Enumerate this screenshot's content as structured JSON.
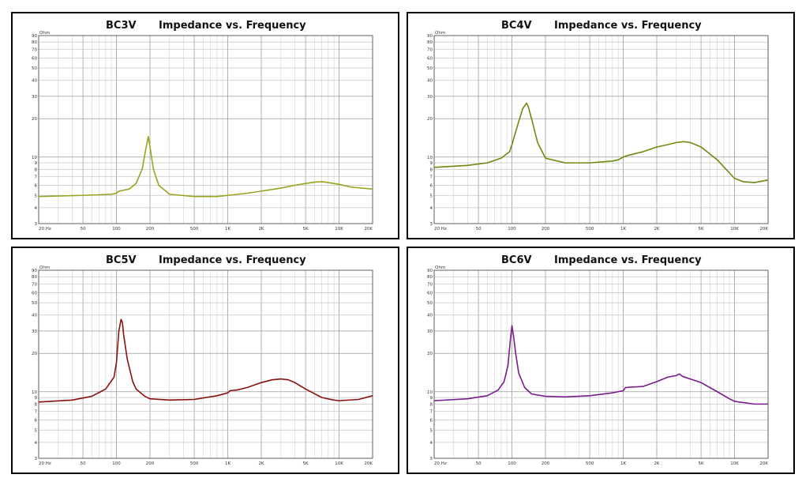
{
  "chart_data": [
    {
      "type": "line",
      "model": "BC3V",
      "title": "Impedance vs. Frequency",
      "xscale": "log",
      "yscale": "log",
      "xlim": [
        20,
        20000
      ],
      "ylim": [
        3,
        90
      ],
      "yunit": "Ohm",
      "xticks": [
        {
          "v": 20,
          "l": "20 Hz"
        },
        {
          "v": 50,
          "l": "50"
        },
        {
          "v": 100,
          "l": "100"
        },
        {
          "v": 200,
          "l": "200"
        },
        {
          "v": 500,
          "l": "500"
        },
        {
          "v": 1000,
          "l": "1K"
        },
        {
          "v": 2000,
          "l": "2K"
        },
        {
          "v": 5000,
          "l": "5K"
        },
        {
          "v": 10000,
          "l": "10K"
        },
        {
          "v": 20000,
          "l": "20K"
        }
      ],
      "yticks": [
        {
          "v": 90,
          "l": "90"
        },
        {
          "v": 80,
          "l": "80"
        },
        {
          "v": 70,
          "l": "70"
        },
        {
          "v": 60,
          "l": "60"
        },
        {
          "v": 50,
          "l": "50"
        },
        {
          "v": 40,
          "l": "40"
        },
        {
          "v": 30,
          "l": "30"
        },
        {
          "v": 20,
          "l": "20"
        },
        {
          "v": 10,
          "l": "10"
        },
        {
          "v": 9,
          "l": "9"
        },
        {
          "v": 8,
          "l": "8"
        },
        {
          "v": 7,
          "l": "7"
        },
        {
          "v": 6,
          "l": "6"
        },
        {
          "v": 5,
          "l": "5"
        },
        {
          "v": 4,
          "l": "4"
        },
        {
          "v": 3,
          "l": "3"
        }
      ],
      "color": "#9aa31c",
      "series": [
        {
          "name": "BC3V",
          "x": [
            20,
            50,
            90,
            100,
            105,
            130,
            150,
            170,
            185,
            193,
            200,
            215,
            240,
            300,
            500,
            800,
            1000,
            1500,
            2000,
            3000,
            4000,
            5000,
            6000,
            7000,
            8000,
            10000,
            13000,
            20000
          ],
          "y": [
            4.9,
            5.0,
            5.1,
            5.2,
            5.4,
            5.6,
            6.2,
            8.0,
            12.0,
            14.5,
            12.0,
            8.0,
            6.0,
            5.1,
            4.9,
            4.9,
            5.0,
            5.2,
            5.4,
            5.7,
            6.0,
            6.2,
            6.35,
            6.4,
            6.3,
            6.1,
            5.8,
            5.6
          ]
        }
      ]
    },
    {
      "type": "line",
      "model": "BC4V",
      "title": "Impedance vs. Frequency",
      "xscale": "log",
      "yscale": "log",
      "xlim": [
        20,
        20000
      ],
      "ylim": [
        3,
        90
      ],
      "yunit": "Ohm",
      "xticks": [
        {
          "v": 20,
          "l": "20 Hz"
        },
        {
          "v": 50,
          "l": "50"
        },
        {
          "v": 100,
          "l": "100"
        },
        {
          "v": 200,
          "l": "200"
        },
        {
          "v": 500,
          "l": "500"
        },
        {
          "v": 1000,
          "l": "1K"
        },
        {
          "v": 2000,
          "l": "2K"
        },
        {
          "v": 5000,
          "l": "5K"
        },
        {
          "v": 10000,
          "l": "10K"
        },
        {
          "v": 20000,
          "l": "20K"
        }
      ],
      "yticks": [
        {
          "v": 90,
          "l": "90"
        },
        {
          "v": 80,
          "l": "80"
        },
        {
          "v": 70,
          "l": "70"
        },
        {
          "v": 60,
          "l": "60"
        },
        {
          "v": 50,
          "l": "50"
        },
        {
          "v": 40,
          "l": "40"
        },
        {
          "v": 30,
          "l": "30"
        },
        {
          "v": 20,
          "l": "20"
        },
        {
          "v": 10,
          "l": "10"
        },
        {
          "v": 9,
          "l": "9"
        },
        {
          "v": 8,
          "l": "8"
        },
        {
          "v": 7,
          "l": "7"
        },
        {
          "v": 6,
          "l": "6"
        },
        {
          "v": 5,
          "l": "5"
        },
        {
          "v": 4,
          "l": "4"
        },
        {
          "v": 3,
          "l": "3"
        }
      ],
      "color": "#6b8a10",
      "series": [
        {
          "name": "BC4V",
          "x": [
            20,
            40,
            60,
            80,
            95,
            100,
            105,
            115,
            125,
            135,
            140,
            150,
            170,
            200,
            300,
            500,
            800,
            900,
            1000,
            1100,
            1500,
            2000,
            2500,
            3000,
            3500,
            4000,
            5000,
            7000,
            9000,
            10000,
            12000,
            15000,
            20000
          ],
          "y": [
            8.3,
            8.6,
            9.0,
            9.8,
            11.0,
            12.5,
            14.5,
            19.0,
            24.0,
            26.5,
            25.0,
            20.0,
            13.0,
            9.8,
            9.0,
            9.0,
            9.3,
            9.5,
            10.0,
            10.3,
            11.0,
            12.0,
            12.5,
            13.0,
            13.2,
            13.0,
            12.0,
            9.5,
            7.5,
            6.8,
            6.4,
            6.3,
            6.6
          ]
        }
      ]
    },
    {
      "type": "line",
      "model": "BC5V",
      "title": "Impedance vs. Frequency",
      "xscale": "log",
      "yscale": "log",
      "xlim": [
        20,
        20000
      ],
      "ylim": [
        3,
        90
      ],
      "yunit": "Ohm",
      "xticks": [
        {
          "v": 20,
          "l": "20 Hz"
        },
        {
          "v": 50,
          "l": "50"
        },
        {
          "v": 100,
          "l": "100"
        },
        {
          "v": 200,
          "l": "200"
        },
        {
          "v": 500,
          "l": "500"
        },
        {
          "v": 1000,
          "l": "1K"
        },
        {
          "v": 2000,
          "l": "2K"
        },
        {
          "v": 5000,
          "l": "5K"
        },
        {
          "v": 10000,
          "l": "10K"
        },
        {
          "v": 20000,
          "l": "20K"
        }
      ],
      "yticks": [
        {
          "v": 90,
          "l": "90"
        },
        {
          "v": 80,
          "l": "80"
        },
        {
          "v": 70,
          "l": "70"
        },
        {
          "v": 60,
          "l": "60"
        },
        {
          "v": 50,
          "l": "50"
        },
        {
          "v": 40,
          "l": "40"
        },
        {
          "v": 30,
          "l": "30"
        },
        {
          "v": 20,
          "l": "20"
        },
        {
          "v": 10,
          "l": "10"
        },
        {
          "v": 9,
          "l": "9"
        },
        {
          "v": 8,
          "l": "8"
        },
        {
          "v": 7,
          "l": "7"
        },
        {
          "v": 6,
          "l": "6"
        },
        {
          "v": 5,
          "l": "5"
        },
        {
          "v": 4,
          "l": "4"
        },
        {
          "v": 3,
          "l": "3"
        }
      ],
      "color": "#8a1010",
      "series": [
        {
          "name": "BC5V",
          "x": [
            20,
            40,
            60,
            80,
            95,
            100,
            105,
            110,
            113,
            116,
            125,
            140,
            150,
            180,
            200,
            300,
            500,
            800,
            1000,
            1050,
            1200,
            1500,
            2000,
            2500,
            3000,
            3500,
            4000,
            5000,
            7000,
            9000,
            10000,
            15000,
            20000
          ],
          "y": [
            8.3,
            8.6,
            9.2,
            10.5,
            13.0,
            17.0,
            30.0,
            37.0,
            35.0,
            28.0,
            18.0,
            12.0,
            10.5,
            9.2,
            8.8,
            8.6,
            8.7,
            9.3,
            9.8,
            10.2,
            10.3,
            10.8,
            11.8,
            12.4,
            12.6,
            12.4,
            11.8,
            10.5,
            9.0,
            8.6,
            8.5,
            8.7,
            9.3
          ]
        }
      ]
    },
    {
      "type": "line",
      "model": "BC6V",
      "title": "Impedance vs. Frequency",
      "xscale": "log",
      "yscale": "log",
      "xlim": [
        20,
        20000
      ],
      "ylim": [
        3,
        90
      ],
      "yunit": "Ohm",
      "xticks": [
        {
          "v": 20,
          "l": "20 Hz"
        },
        {
          "v": 50,
          "l": "50"
        },
        {
          "v": 100,
          "l": "100"
        },
        {
          "v": 200,
          "l": "200"
        },
        {
          "v": 500,
          "l": "500"
        },
        {
          "v": 1000,
          "l": "1K"
        },
        {
          "v": 2000,
          "l": "2K"
        },
        {
          "v": 5000,
          "l": "5K"
        },
        {
          "v": 10000,
          "l": "10K"
        },
        {
          "v": 20000,
          "l": "20K"
        }
      ],
      "yticks": [
        {
          "v": 90,
          "l": "90"
        },
        {
          "v": 80,
          "l": "80"
        },
        {
          "v": 70,
          "l": "70"
        },
        {
          "v": 60,
          "l": "60"
        },
        {
          "v": 50,
          "l": "50"
        },
        {
          "v": 40,
          "l": "40"
        },
        {
          "v": 30,
          "l": "30"
        },
        {
          "v": 20,
          "l": "20"
        },
        {
          "v": 10,
          "l": "10"
        },
        {
          "v": 9,
          "l": "9"
        },
        {
          "v": 8,
          "l": "8"
        },
        {
          "v": 7,
          "l": "7"
        },
        {
          "v": 6,
          "l": "6"
        },
        {
          "v": 5,
          "l": "5"
        },
        {
          "v": 4,
          "l": "4"
        },
        {
          "v": 3,
          "l": "3"
        }
      ],
      "color": "#7a1a8c",
      "series": [
        {
          "name": "BC6V",
          "x": [
            20,
            40,
            60,
            75,
            85,
            92,
            97,
            100,
            103,
            108,
            115,
            130,
            150,
            200,
            300,
            500,
            800,
            1000,
            1050,
            1500,
            2000,
            2500,
            3000,
            3200,
            3400,
            4000,
            5000,
            7000,
            9000,
            10000,
            15000,
            20000
          ],
          "y": [
            8.5,
            8.8,
            9.3,
            10.3,
            12.0,
            16.0,
            26.0,
            33.0,
            28.0,
            20.0,
            14.0,
            10.8,
            9.6,
            9.2,
            9.1,
            9.3,
            9.8,
            10.2,
            10.8,
            11.0,
            12.0,
            13.0,
            13.4,
            13.8,
            13.2,
            12.6,
            11.8,
            10.0,
            8.8,
            8.4,
            8.0,
            8.0
          ]
        }
      ]
    }
  ]
}
